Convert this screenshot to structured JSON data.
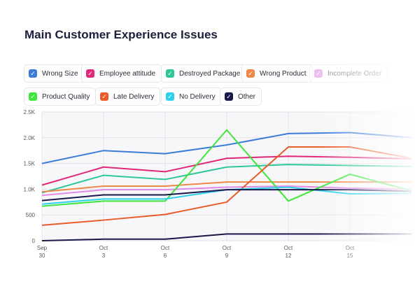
{
  "header": {
    "title": "Main Customer Experience Issues"
  },
  "legend": [
    {
      "label": "Wrong Size",
      "color": "#3b7dd8"
    },
    {
      "label": "Employee attitude",
      "color": "#e0287a"
    },
    {
      "label": "Destroyed Package",
      "color": "#2ec79a"
    },
    {
      "label": "Wrong Product",
      "color": "#f0874a"
    },
    {
      "label": "Incomplete Order",
      "color": "#e08ae8"
    },
    {
      "label": "Product Quality",
      "color": "#3ee63a"
    },
    {
      "label": "Late Delivery",
      "color": "#ea5a2a"
    },
    {
      "label": "No Delivery",
      "color": "#2fd0ec"
    },
    {
      "label": "Other",
      "color": "#18184a"
    }
  ],
  "chart_data": {
    "type": "line",
    "x": [
      [
        "Sep",
        "30"
      ],
      [
        "Oct",
        "3"
      ],
      [
        "Oct",
        "6"
      ],
      [
        "Oct",
        "9"
      ],
      [
        "Oct",
        "12"
      ],
      [
        "Oct",
        "15"
      ],
      [
        "",
        ""
      ]
    ],
    "y_ticks": [
      "0",
      "500",
      "1.0K",
      "1.5K",
      "2.0K",
      "2.5K"
    ],
    "ylim": [
      0,
      2500
    ],
    "grid": true,
    "series": [
      {
        "name": "Wrong Size",
        "color": "#3b7dd8",
        "values": [
          1500,
          1750,
          1690,
          1860,
          2080,
          2100,
          2000
        ]
      },
      {
        "name": "Employee attitude",
        "color": "#e0287a",
        "values": [
          1080,
          1430,
          1340,
          1600,
          1640,
          1620,
          1590
        ]
      },
      {
        "name": "Destroyed Package",
        "color": "#2ec79a",
        "values": [
          930,
          1270,
          1190,
          1430,
          1480,
          1460,
          1440
        ]
      },
      {
        "name": "Wrong Product",
        "color": "#f0874a",
        "values": [
          950,
          1060,
          1060,
          1140,
          1140,
          1140,
          1140
        ]
      },
      {
        "name": "Incomplete Order",
        "color": "#e08ae8",
        "values": [
          880,
          990,
          990,
          1040,
          1060,
          1020,
          1000
        ]
      },
      {
        "name": "Product Quality",
        "color": "#3ee63a",
        "values": [
          670,
          770,
          770,
          2150,
          770,
          1290,
          970
        ]
      },
      {
        "name": "Late Delivery",
        "color": "#ea5a2a",
        "values": [
          300,
          400,
          510,
          750,
          1820,
          1820,
          1600
        ]
      },
      {
        "name": "No Delivery",
        "color": "#2fd0ec",
        "values": [
          710,
          810,
          810,
          990,
          1040,
          910,
          920
        ]
      },
      {
        "name": "Other",
        "color": "#18184a",
        "values": [
          780,
          890,
          890,
          990,
          990,
          990,
          960
        ]
      },
      {
        "name": "Other low",
        "color": "#18184a",
        "values": [
          0,
          30,
          30,
          130,
          130,
          130,
          130
        ]
      }
    ]
  }
}
